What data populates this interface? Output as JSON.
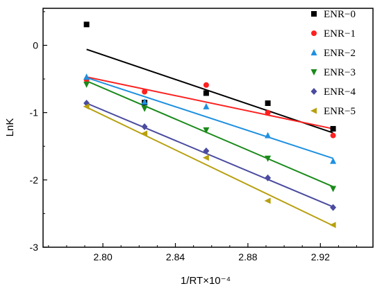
{
  "chart_data": {
    "type": "scatter",
    "xlabel": "1/RT×10⁻⁴",
    "ylabel": "LnK",
    "xlim": [
      2.767,
      2.949
    ],
    "ylim": [
      -3,
      0.55
    ],
    "xticks": [
      2.8,
      2.84,
      2.88,
      2.92
    ],
    "xtick_labels": [
      "2.80",
      "2.84",
      "2.88",
      "2.92"
    ],
    "yticks": [
      0,
      -1,
      -2,
      -3
    ],
    "ytick_labels": [
      "0",
      "-1",
      "-2",
      "-3"
    ],
    "grid": false,
    "legend_position": "top-right",
    "x": [
      2.791,
      2.823,
      2.857,
      2.891,
      2.927
    ],
    "series": [
      {
        "name": "ENR−0",
        "marker": "square",
        "color": "#000000",
        "values": [
          0.31,
          -0.85,
          -0.71,
          -0.86,
          -1.24
        ],
        "fit": {
          "x": [
            2.791,
            2.927
          ],
          "y": [
            -0.06,
            -1.3
          ]
        }
      },
      {
        "name": "ENR−1",
        "marker": "circle",
        "color": "#ff2020",
        "values": [
          -0.51,
          -0.69,
          -0.59,
          -1.0,
          -1.34
        ],
        "fit": {
          "x": [
            2.791,
            2.927
          ],
          "y": [
            -0.47,
            -1.24
          ]
        }
      },
      {
        "name": "ENR−2",
        "marker": "triangle-up",
        "color": "#1e90e0",
        "values": [
          -0.47,
          -0.84,
          -0.91,
          -1.34,
          -1.72
        ],
        "fit": {
          "x": [
            2.791,
            2.927
          ],
          "y": [
            -0.48,
            -1.68
          ]
        }
      },
      {
        "name": "ENR−3",
        "marker": "triangle-down",
        "color": "#1a8a1a",
        "values": [
          -0.58,
          -0.94,
          -1.26,
          -1.68,
          -2.13
        ],
        "fit": {
          "x": [
            2.791,
            2.927
          ],
          "y": [
            -0.53,
            -2.1
          ]
        }
      },
      {
        "name": "ENR−4",
        "marker": "diamond",
        "color": "#4b4ba0",
        "values": [
          -0.86,
          -1.21,
          -1.57,
          -1.97,
          -2.41
        ],
        "fit": {
          "x": [
            2.791,
            2.927
          ],
          "y": [
            -0.86,
            -2.4
          ]
        }
      },
      {
        "name": "ENR−5",
        "marker": "triangle-left",
        "color": "#b8a010",
        "values": [
          -0.91,
          -1.31,
          -1.67,
          -2.31,
          -2.67
        ],
        "fit": {
          "x": [
            2.791,
            2.927
          ],
          "y": [
            -0.92,
            -2.68
          ]
        }
      }
    ]
  }
}
